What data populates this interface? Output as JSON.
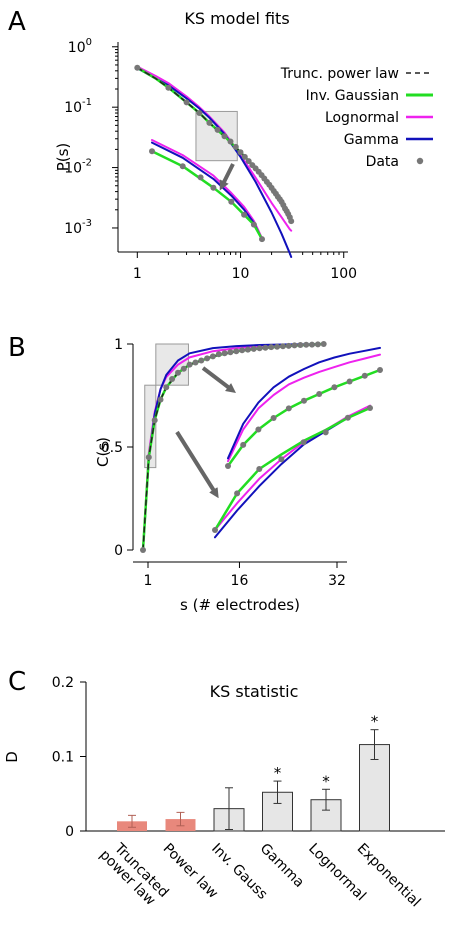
{
  "colors": {
    "inv_gaussian": "#22dd22",
    "lognormal": "#ee22ee",
    "gamma": "#1111bb",
    "data": "#777777",
    "trunc_power_law": "#222222",
    "bar_highlight": "#e8887c",
    "bar_gray": "#e6e6e6",
    "inset_box": "#d9d9d9",
    "arrow": "#666666"
  },
  "chart_data": [
    {
      "panel": "A",
      "type": "line",
      "title": "KS model fits",
      "xlabel": "",
      "ylabel": "P(s)",
      "xscale": "log",
      "yscale": "log",
      "xlim": [
        0.65,
        110
      ],
      "ylim": [
        0.0004,
        1.2
      ],
      "xticks": [
        "1",
        "10",
        "100"
      ],
      "yticks": [
        "10^0",
        "10^-1",
        "10^-2",
        "10^-3"
      ],
      "legend_position": "top-right",
      "legend": [
        "Trunc. power law",
        "Inv. Gaussian",
        "Lognormal",
        "Gamma",
        "Data"
      ],
      "data_points": {
        "x": [
          1,
          2,
          3,
          4,
          5,
          6,
          7,
          8,
          9,
          10,
          11,
          12,
          13,
          14,
          15,
          16,
          17,
          18,
          19,
          20,
          21,
          22,
          23,
          24,
          25,
          26,
          27,
          28,
          29,
          30,
          31
        ],
        "y": [
          0.45,
          0.21,
          0.12,
          0.08,
          0.055,
          0.042,
          0.033,
          0.027,
          0.022,
          0.018,
          0.015,
          0.0128,
          0.011,
          0.0097,
          0.0085,
          0.0075,
          0.0066,
          0.0058,
          0.0052,
          0.0046,
          0.0041,
          0.0037,
          0.0033,
          0.003,
          0.0027,
          0.0024,
          0.0021,
          0.0019,
          0.0017,
          0.0015,
          0.0013
        ]
      },
      "model_fits": {
        "x": [
          1,
          1.5,
          2,
          3,
          4,
          5,
          7,
          10,
          14,
          20,
          25,
          30,
          31
        ],
        "inv_gaussian": [
          0.45,
          0.3,
          0.21,
          0.12,
          0.08,
          0.055,
          0.033,
          0.018,
          0.0097,
          0.0046,
          0.0027,
          0.0015,
          0.0013
        ],
        "trunc_power_law": [
          0.45,
          0.3,
          0.21,
          0.12,
          0.08,
          0.055,
          0.033,
          0.018,
          0.0097,
          0.0046,
          0.0027,
          0.0015,
          0.0013
        ],
        "lognormal": [
          0.47,
          0.33,
          0.25,
          0.15,
          0.1,
          0.07,
          0.038,
          0.016,
          0.0068,
          0.0026,
          0.0015,
          0.00095,
          0.0009
        ],
        "gamma": [
          0.44,
          0.3,
          0.23,
          0.14,
          0.095,
          0.067,
          0.036,
          0.015,
          0.0058,
          0.0018,
          0.0008,
          0.00038,
          0.00033
        ]
      },
      "inset_box": {
        "x": [
          3.7,
          9.3
        ],
        "y": [
          0.013,
          0.085
        ]
      },
      "inset": {
        "data_points": {
          "x": [
            1,
            2,
            3,
            4,
            6,
            8,
            10,
            12
          ],
          "y": [
            0.015,
            0.0087,
            0.0058,
            0.004,
            0.0024,
            0.0015,
            0.00105,
            0.00062
          ]
        },
        "fit_x": [
          1,
          2,
          4,
          6,
          8,
          10,
          12
        ],
        "inv_gaussian": [
          0.015,
          0.0087,
          0.004,
          0.0024,
          0.0015,
          0.00105,
          0.00062
        ],
        "lognormal": [
          0.0225,
          0.013,
          0.0062,
          0.0033,
          0.002,
          0.0012,
          0.00064
        ],
        "gamma": [
          0.0205,
          0.0118,
          0.0055,
          0.003,
          0.0018,
          0.00112,
          0.0006
        ]
      }
    },
    {
      "panel": "B",
      "type": "line",
      "xlabel": "s (# electrodes)",
      "ylabel": "C(s)",
      "xlim": [
        0,
        35
      ],
      "ylim": [
        0,
        1
      ],
      "xticks": [
        "1",
        "16",
        "32"
      ],
      "yticks": [
        "0",
        "0.5",
        "1"
      ],
      "data_points": {
        "x": [
          0,
          1,
          2,
          3,
          4,
          5,
          6,
          7,
          8,
          9,
          10,
          11,
          12,
          13,
          14,
          15,
          16,
          17,
          18,
          19,
          20,
          21,
          22,
          23,
          24,
          25,
          26,
          27,
          28,
          29,
          30,
          31
        ],
        "y": [
          0,
          0.45,
          0.63,
          0.73,
          0.79,
          0.83,
          0.86,
          0.88,
          0.9,
          0.91,
          0.92,
          0.93,
          0.94,
          0.95,
          0.955,
          0.96,
          0.965,
          0.97,
          0.973,
          0.976,
          0.979,
          0.982,
          0.985,
          0.987,
          0.989,
          0.991,
          0.993,
          0.995,
          0.996,
          0.997,
          0.998,
          1
        ]
      },
      "model_fits": {
        "x": [
          0,
          1,
          2,
          3,
          4,
          6,
          8,
          12,
          16,
          20,
          25,
          31
        ],
        "inv_gaussian": [
          0,
          0.45,
          0.63,
          0.73,
          0.79,
          0.86,
          0.9,
          0.94,
          0.965,
          0.979,
          0.991,
          1
        ],
        "trunc_power_law": [
          0,
          0.45,
          0.63,
          0.73,
          0.79,
          0.86,
          0.9,
          0.94,
          0.965,
          0.979,
          0.991,
          1
        ],
        "lognormal": [
          0,
          0.47,
          0.67,
          0.78,
          0.84,
          0.9,
          0.935,
          0.965,
          0.98,
          0.99,
          0.996,
          0.998
        ],
        "gamma": [
          0,
          0.44,
          0.66,
          0.78,
          0.85,
          0.92,
          0.955,
          0.98,
          0.99,
          0.995,
          0.998,
          0.999
        ]
      },
      "inset_boxes": [
        {
          "x": [
            0.3,
            2.2
          ],
          "y": [
            0.4,
            0.8
          ]
        },
        {
          "x": [
            2.2,
            7.8
          ],
          "y": [
            0.8,
            1.0
          ]
        }
      ],
      "insets": [
        {
          "data_points": {
            "x": [
              0,
              1,
              2,
              3,
              4,
              5,
              6,
              7
            ],
            "y": [
              0,
              0.3,
              0.5,
              0.58,
              0.72,
              0.8,
              0.92,
              1
            ]
          },
          "fit_x": [
            0,
            1,
            2,
            3,
            4,
            5,
            6,
            7
          ],
          "inv_gaussian": [
            0,
            0.3,
            0.5,
            0.62,
            0.73,
            0.82,
            0.92,
            1
          ],
          "lognormal": [
            0,
            0.22,
            0.42,
            0.58,
            0.72,
            0.82,
            0.93,
            1.02
          ],
          "gamma": [
            -0.06,
            0.16,
            0.36,
            0.54,
            0.7,
            0.81,
            0.92,
            1
          ]
        },
        {
          "data_points": {
            "x": [
              0,
              1,
              2,
              3,
              4,
              5,
              6,
              7,
              8,
              9,
              10
            ],
            "y": [
              0,
              0.22,
              0.38,
              0.5,
              0.6,
              0.68,
              0.75,
              0.82,
              0.88,
              0.94,
              1
            ]
          },
          "fit_x": [
            0,
            1,
            2,
            3,
            4,
            5,
            6,
            7,
            8,
            9,
            10
          ],
          "inv_gaussian": [
            0,
            0.22,
            0.38,
            0.5,
            0.6,
            0.68,
            0.75,
            0.82,
            0.88,
            0.94,
            1
          ],
          "lognormal": [
            0.05,
            0.38,
            0.6,
            0.74,
            0.85,
            0.92,
            0.98,
            1.03,
            1.08,
            1.12,
            1.16
          ],
          "gamma": [
            0.08,
            0.44,
            0.66,
            0.82,
            0.93,
            1.01,
            1.08,
            1.13,
            1.17,
            1.2,
            1.23
          ]
        }
      ]
    },
    {
      "panel": "C",
      "type": "bar",
      "title": "KS statistic",
      "ylabel": "D",
      "ylim": [
        0,
        0.2
      ],
      "yticks": [
        "0",
        "0.1",
        "0.2"
      ],
      "categories": [
        "Truncated power law",
        "Power law",
        "Inv. Gauss",
        "Gamma",
        "Lognormal",
        "Exponential"
      ],
      "category_lines": [
        [
          "Truncated",
          "power law"
        ],
        [
          "Power law"
        ],
        [
          "Inv. Gauss"
        ],
        [
          "Gamma"
        ],
        [
          "Lognormal"
        ],
        [
          "Exponential"
        ]
      ],
      "values": [
        0.013,
        0.016,
        0.03,
        0.052,
        0.042,
        0.116
      ],
      "errors": [
        0.008,
        0.009,
        0.028,
        0.015,
        0.014,
        0.02
      ],
      "highlight": [
        true,
        true,
        false,
        false,
        false,
        false
      ],
      "significance": [
        "",
        "",
        "",
        "*",
        "*",
        "*"
      ]
    }
  ]
}
